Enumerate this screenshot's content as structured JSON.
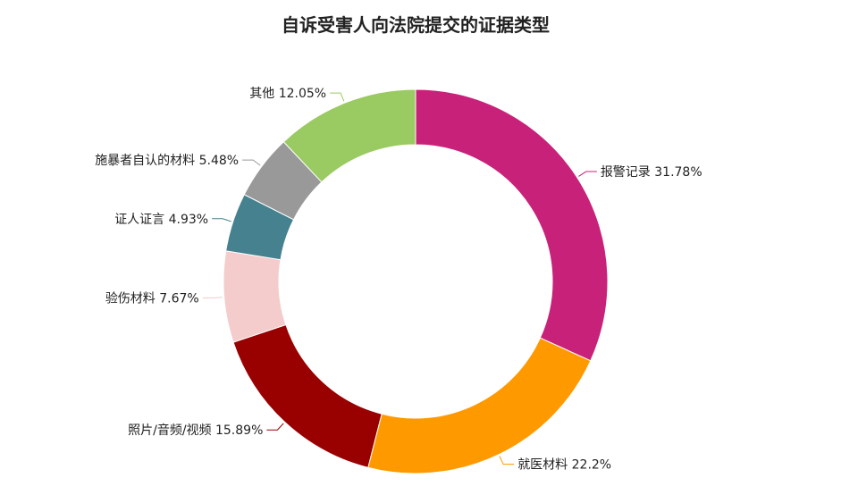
{
  "chart_data": {
    "type": "pie",
    "variant": "donut",
    "title": "自诉受害人向法院提交的证据类型",
    "slices": [
      {
        "label": "报警记录",
        "value": 31.78,
        "display": "31.78%",
        "color": "#C8217A"
      },
      {
        "label": "就医材料",
        "value": 22.2,
        "display": "22.2%",
        "color": "#FF9900"
      },
      {
        "label": "照片/音频/视频",
        "value": 15.89,
        "display": "15.89%",
        "color": "#990000"
      },
      {
        "label": "验伤材料",
        "value": 7.67,
        "display": "7.67%",
        "color": "#F4CCCC"
      },
      {
        "label": "证人证言",
        "value": 4.93,
        "display": "4.93%",
        "color": "#45818E"
      },
      {
        "label": "施暴者自认的材料",
        "value": 5.48,
        "display": "5.48%",
        "color": "#999999"
      },
      {
        "label": "其他",
        "value": 12.05,
        "display": "12.05%",
        "color": "#9ACA62"
      }
    ],
    "direction": "clockwise",
    "start": "top",
    "legend": "none",
    "labels": "outside with leader lines"
  }
}
